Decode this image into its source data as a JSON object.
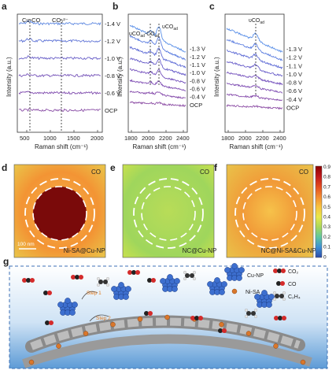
{
  "panels": {
    "a": {
      "letter": "a",
      "ylabel": "Intensity (a.u.)",
      "xlabel": "Raman shift (cm⁻¹)",
      "xticks": [
        "500",
        "1000",
        "1500",
        "2000"
      ],
      "markers": [
        {
          "label": "Cu-CO",
          "x": 330
        },
        {
          "label": "CO₃²⁻",
          "x": 1070
        }
      ],
      "traces": [
        "-1.4 V",
        "-1.2 V",
        "-1.0 V",
        "-0.8 V",
        "-0.6 V",
        "OCP"
      ],
      "trace_colors": [
        "#5b86e0",
        "#5f74d6",
        "#6a60c8",
        "#7451b8",
        "#7e49ad",
        "#8a4ea6"
      ]
    },
    "b": {
      "letter": "b",
      "ylabel": "Intensity (a.u.)",
      "xlabel": "Raman shift (cm⁻¹)",
      "xticks": [
        "1800",
        "2000",
        "2200",
        "2400"
      ],
      "marker1": "υCO",
      "marker1_sub": "ad",
      "marker1_mid": "-CO",
      "marker1_sub2": "ad",
      "marker2": "υCO",
      "marker2_sub": "ad",
      "traces": [
        "-1.3 V",
        "-1.2 V",
        "-1.1 V",
        "-1.0 V",
        "-0.8 V",
        "-0.6 V",
        "-0.4 V",
        "OCP"
      ],
      "trace_colors": [
        "#5b90e8",
        "#5c7ee0",
        "#606dd6",
        "#6a5fca",
        "#7552bd",
        "#7d4bb2",
        "#8449aa",
        "#8e50a6"
      ]
    },
    "c": {
      "letter": "c",
      "ylabel": "Intensity (a.u.)",
      "xlabel": "Raman shift (cm⁻¹)",
      "xticks": [
        "1800",
        "2000",
        "2200",
        "2400"
      ],
      "marker": "υCO",
      "marker_sub": "ad",
      "traces": [
        "-1.3 V",
        "-1.2 V",
        "-1.1 V",
        "-1.0 V",
        "-0.8 V",
        "-0.6 V",
        "-0.4 V",
        "OCP"
      ],
      "trace_colors": [
        "#5b90e8",
        "#5c7ee0",
        "#606dd6",
        "#6a5fca",
        "#7552bd",
        "#7d4bb2",
        "#8449aa",
        "#8e50a6"
      ]
    },
    "d": {
      "letter": "d",
      "tag": "CO",
      "caption": "Ni-SA@Cu-NP",
      "scalebar": "100 nm",
      "core_color": "#7a0a0a",
      "bg_color": "#f09a3a"
    },
    "e": {
      "letter": "e",
      "tag": "CO",
      "caption": "NC@Cu-NP",
      "bg_color": "#a8d85a"
    },
    "f": {
      "letter": "f",
      "tag": "CO",
      "caption": "NC@Ni-SA&Cu-NP",
      "bg_color": "#f0a03c"
    },
    "g": {
      "letter": "g",
      "legend": [
        {
          "label": "Cu-NP",
          "icon": "cu-cluster"
        },
        {
          "label": "CO₂",
          "icon": "co2-molecule"
        },
        {
          "label": "Ni-SA",
          "icon": "ni-atom"
        },
        {
          "label": "CO",
          "icon": "co-molecule"
        },
        {
          "label": "C₂H₄",
          "icon": "c2h4-molecule"
        }
      ],
      "step1": "Step 1",
      "step2": "Step 2"
    }
  },
  "colorbar": {
    "ticks": [
      "0.9",
      "0.8",
      "0.7",
      "0.6",
      "0.5",
      "0.4",
      "0.3",
      "0.2",
      "0.1",
      "0"
    ],
    "colors": [
      "#8b0000",
      "#c0171b",
      "#e34a1f",
      "#f3892f",
      "#f8c23e",
      "#e9e84a",
      "#a9d85a",
      "#5fc7a0",
      "#3d8fd6",
      "#2c4ba8"
    ]
  }
}
